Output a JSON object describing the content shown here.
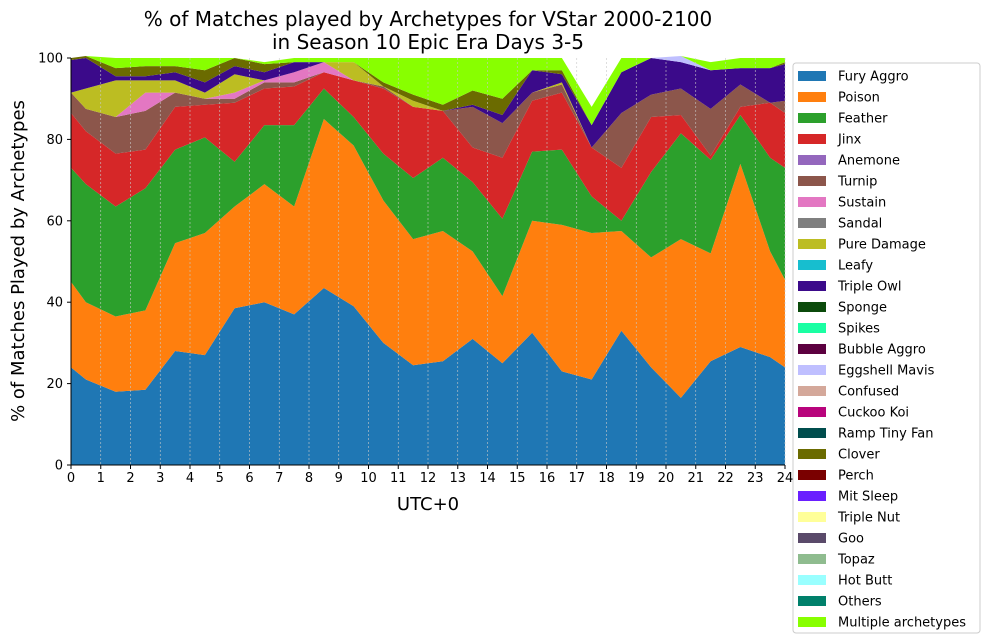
{
  "chart_data": {
    "type": "area",
    "stacked": true,
    "title_line1": "% of Matches played by Archetypes for VStar 2000-2100",
    "title_line2": "in Season 10 Epic Era Days 3-5",
    "xlabel": "UTC+0",
    "ylabel": "% of Matches Played by Archetypes",
    "xlim": [
      0,
      24
    ],
    "ylim": [
      0,
      100
    ],
    "xticks": [
      "0",
      "1",
      "2",
      "3",
      "4",
      "5",
      "6",
      "7",
      "8",
      "9",
      "10",
      "11",
      "12",
      "13",
      "14",
      "15",
      "16",
      "17",
      "18",
      "19",
      "20",
      "21",
      "22",
      "23",
      "24"
    ],
    "yticks": [
      "0",
      "20",
      "40",
      "60",
      "80",
      "100"
    ],
    "grid": "vertical dashed",
    "legend_position": "right-outside",
    "x": [
      0,
      0.5,
      1.5,
      2.5,
      3.5,
      4.5,
      5.5,
      6.5,
      7.5,
      8.5,
      9.5,
      10.5,
      11.5,
      12.5,
      13.5,
      14.5,
      15.5,
      16.5,
      17.5,
      18.5,
      19.5,
      20.5,
      21.5,
      22.5,
      23.5,
      24
    ],
    "series": [
      {
        "name": "Fury Aggro",
        "color": "#1f77b4",
        "values": [
          24,
          21,
          18,
          18.5,
          28,
          27,
          38.5,
          40,
          37,
          43.5,
          39,
          30,
          24.5,
          25.5,
          31,
          25,
          32.5,
          23,
          21,
          33,
          24,
          16.5,
          25.5,
          29,
          26.5,
          24
        ]
      },
      {
        "name": "Poison",
        "color": "#ff7f0e",
        "values": [
          21,
          19,
          18.5,
          19.5,
          26.5,
          30,
          25,
          29,
          26.5,
          41.5,
          39.5,
          35,
          31,
          32,
          21.5,
          16.5,
          27.5,
          36,
          36,
          24.5,
          27,
          39,
          26.5,
          45,
          26,
          21.5
        ]
      },
      {
        "name": "Feather",
        "color": "#2ca02c",
        "values": [
          28,
          29,
          27,
          30,
          23,
          23.5,
          11,
          14.5,
          20,
          7.5,
          7,
          11.5,
          15,
          18,
          17,
          19,
          17,
          18.5,
          9,
          2.5,
          21,
          26,
          23,
          12,
          23,
          27.5
        ]
      },
      {
        "name": "Jinx",
        "color": "#d62728",
        "values": [
          13.5,
          13,
          13,
          9.5,
          10.5,
          8,
          14.5,
          9,
          9.5,
          4,
          9,
          16,
          17.5,
          11.5,
          8.5,
          15,
          12.5,
          14,
          12,
          13,
          13.5,
          4.5,
          1,
          2,
          13.5,
          13.5
        ]
      },
      {
        "name": "Anemone",
        "color": "#9467bd",
        "values": [
          0,
          0,
          0,
          0,
          0,
          0,
          0,
          0,
          0,
          0,
          0,
          0,
          0,
          0,
          0,
          0,
          0,
          0,
          0,
          0,
          0,
          0,
          0,
          0,
          0,
          0
        ]
      },
      {
        "name": "Turnip",
        "color": "#8c564b",
        "values": [
          5,
          5.5,
          9,
          9.5,
          3.5,
          1.5,
          1,
          1.5,
          1,
          0,
          0,
          0.5,
          0,
          0,
          10,
          8.5,
          2,
          2,
          0,
          13.5,
          5.5,
          6.5,
          11.5,
          5.5,
          0,
          3
        ]
      },
      {
        "name": "Sustain",
        "color": "#e377c2",
        "values": [
          0,
          0,
          0,
          4.5,
          0,
          0,
          1.5,
          0.5,
          2.5,
          2.5,
          0,
          0,
          0,
          0,
          0,
          0,
          0,
          0,
          0,
          0,
          0,
          0,
          0,
          0,
          0,
          0
        ]
      },
      {
        "name": "Sandal",
        "color": "#7f7f7f",
        "values": [
          0,
          0,
          0,
          0,
          0,
          0,
          0,
          0,
          0,
          0,
          0,
          0,
          0,
          0,
          0,
          0,
          0,
          0,
          0,
          0,
          0,
          0,
          0,
          0,
          0,
          0
        ]
      },
      {
        "name": "Pure Damage",
        "color": "#bcbd22",
        "values": [
          0,
          5,
          9,
          3,
          3,
          1.5,
          4.5,
          0,
          0,
          0,
          4.5,
          0,
          1.5,
          0,
          0,
          0,
          0,
          0.5,
          0,
          0,
          0,
          0,
          0,
          0,
          0,
          0
        ]
      },
      {
        "name": "Leafy",
        "color": "#17becf",
        "values": [
          0,
          0,
          0,
          0,
          0,
          0,
          0,
          0,
          0,
          0,
          0,
          0,
          0,
          0,
          0,
          0,
          0,
          0,
          0,
          0,
          0,
          0,
          0,
          0,
          0,
          0
        ]
      },
      {
        "name": "Triple Owl",
        "color": "#3b0a8a",
        "values": [
          8,
          7.5,
          1,
          1,
          2,
          2.5,
          2,
          2,
          2.5,
          0,
          0,
          0,
          0,
          0,
          0.5,
          2,
          5.5,
          2,
          5.5,
          10,
          9,
          6.5,
          9.5,
          4,
          8.5,
          9
        ]
      },
      {
        "name": "Sponge",
        "color": "#0b4a0b",
        "values": [
          0,
          0,
          0,
          0,
          0,
          0,
          0,
          0,
          0,
          0,
          0,
          0,
          0,
          0,
          0,
          0,
          0,
          0,
          0,
          0,
          0,
          0,
          0,
          0,
          0,
          0
        ]
      },
      {
        "name": "Spikes",
        "color": "#1affa3",
        "values": [
          0,
          0,
          0,
          0,
          0,
          0,
          0,
          0,
          0,
          0,
          0,
          0,
          0,
          0,
          0,
          0,
          0,
          0,
          0,
          0,
          0,
          0,
          0,
          0,
          0,
          0
        ]
      },
      {
        "name": "Bubble Aggro",
        "color": "#5c0040",
        "values": [
          0,
          0,
          0,
          0,
          0,
          0,
          0,
          0,
          0,
          0,
          0,
          0,
          0,
          0,
          0,
          0,
          0,
          0,
          0,
          0,
          0,
          0,
          0,
          0,
          0,
          0
        ]
      },
      {
        "name": "Eggshell Mavis",
        "color": "#bfbfff",
        "values": [
          0,
          0,
          0,
          0,
          0,
          0,
          0,
          0,
          0,
          0,
          0,
          0,
          0,
          0,
          0,
          0,
          0,
          0,
          0,
          0,
          0,
          1.5,
          0,
          0,
          0,
          0
        ]
      },
      {
        "name": "Confused",
        "color": "#d4a89a",
        "values": [
          0,
          0,
          0,
          0,
          0,
          0,
          0,
          0,
          0,
          0,
          0,
          0,
          0,
          0,
          0,
          0,
          0,
          0,
          0,
          0,
          0,
          0,
          0,
          0,
          0,
          0
        ]
      },
      {
        "name": "Cuckoo Koi",
        "color": "#b8047c",
        "values": [
          0,
          0,
          0,
          0,
          0,
          0,
          0,
          0,
          0,
          0,
          0,
          0,
          0,
          0,
          0,
          0,
          0,
          0,
          0,
          0,
          0,
          0,
          0,
          0,
          0,
          0
        ]
      },
      {
        "name": "Ramp Tiny Fan",
        "color": "#004d4d",
        "values": [
          0,
          0,
          0,
          0,
          0,
          0,
          0,
          0,
          0,
          0,
          0,
          0,
          0,
          0,
          0,
          0,
          0,
          0,
          0,
          0,
          0,
          0,
          0,
          0,
          0,
          0
        ]
      },
      {
        "name": "Clover",
        "color": "#6b6b00",
        "values": [
          0.5,
          0.5,
          2,
          2.5,
          1.5,
          3,
          2,
          2,
          0,
          0,
          0,
          1,
          1.5,
          1.5,
          3.5,
          4,
          0,
          1,
          0,
          0,
          0,
          0,
          0,
          0,
          0,
          0.5
        ]
      },
      {
        "name": "Perch",
        "color": "#7a0000",
        "values": [
          0,
          0,
          0,
          0,
          0,
          0,
          0,
          0,
          0,
          0,
          0,
          0,
          0,
          0,
          0,
          0,
          0,
          0,
          0,
          0,
          0,
          0,
          0,
          0,
          0,
          0
        ]
      },
      {
        "name": "Mit Sleep",
        "color": "#6a1fff",
        "values": [
          0,
          0,
          0,
          0,
          0,
          0,
          0,
          0,
          0,
          0,
          0,
          0,
          0,
          0,
          0,
          0,
          0,
          0,
          0,
          0,
          0,
          0,
          0,
          0,
          0,
          0
        ]
      },
      {
        "name": "Triple Nut",
        "color": "#ffff99",
        "values": [
          0,
          0,
          0,
          0,
          0,
          0,
          0,
          0,
          0,
          0,
          0,
          0,
          0,
          0,
          0,
          0,
          0,
          0,
          0,
          0,
          0,
          0,
          0,
          0,
          0,
          0
        ]
      },
      {
        "name": "Goo",
        "color": "#5a4a6a",
        "values": [
          0,
          0,
          0,
          0,
          0,
          0,
          0,
          0,
          0,
          0,
          0,
          0,
          0,
          0,
          0,
          0,
          0,
          0,
          0,
          0,
          0,
          0,
          0,
          0,
          0,
          0
        ]
      },
      {
        "name": "Topaz",
        "color": "#8fbc8f",
        "values": [
          0,
          0,
          0,
          0,
          0,
          0,
          0,
          0,
          0,
          0,
          0,
          0,
          0,
          0,
          0,
          0,
          0,
          0,
          0,
          0,
          0,
          0,
          0,
          0,
          0,
          0
        ]
      },
      {
        "name": "Hot Butt",
        "color": "#99ffff",
        "values": [
          0,
          0,
          0,
          0,
          0,
          0,
          0,
          0,
          0,
          0,
          0,
          0,
          0,
          0,
          0,
          0,
          0,
          0,
          0,
          0,
          0,
          0,
          0,
          0,
          0,
          0
        ]
      },
      {
        "name": "Others",
        "color": "#00806b",
        "values": [
          0,
          0,
          0,
          0,
          0,
          0,
          0,
          0,
          0,
          0,
          0,
          0,
          0,
          0,
          0,
          0,
          0,
          0,
          0,
          0,
          0,
          0,
          0,
          0,
          0,
          0
        ]
      },
      {
        "name": "Multiple archetypes",
        "color": "#88ff00",
        "values": [
          0,
          0,
          2.5,
          2,
          2,
          3,
          0,
          0.5,
          1,
          1,
          1,
          6,
          9,
          11.5,
          8,
          10,
          3,
          3,
          4.5,
          3.5,
          0,
          0,
          2,
          2.5,
          2.5,
          1
        ]
      }
    ]
  }
}
